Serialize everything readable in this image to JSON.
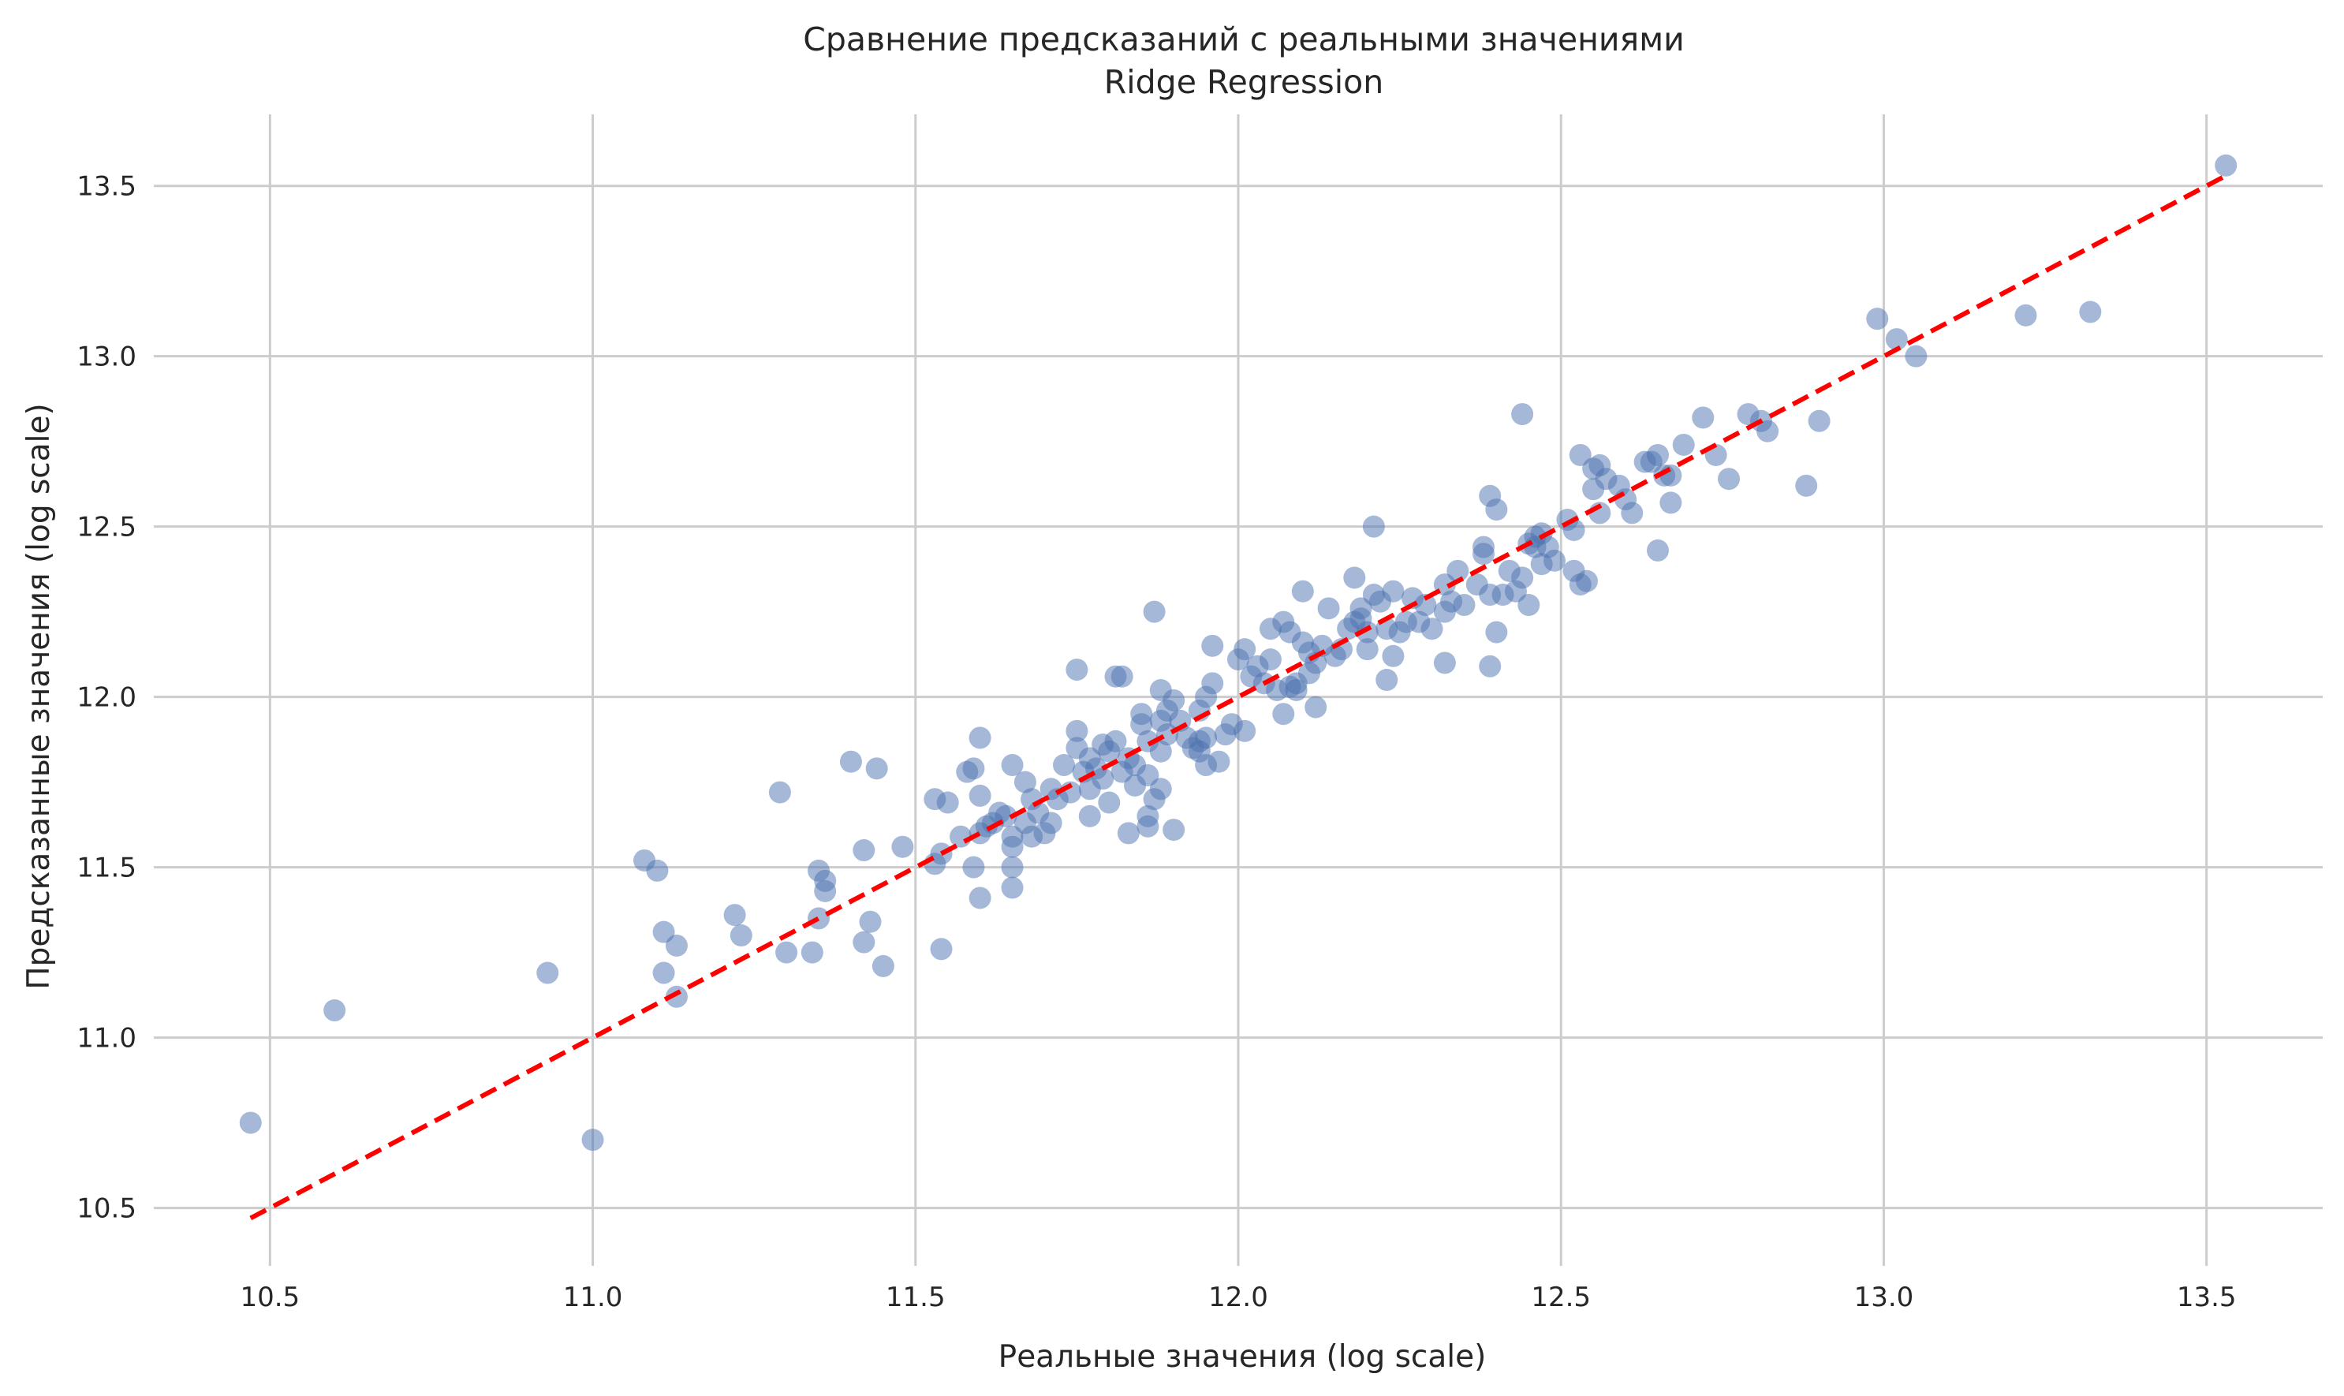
{
  "chart_data": {
    "type": "scatter",
    "title": "Сравнение предсказаний с реальными значениями",
    "subtitle": "Ridge Regression",
    "xlabel": "Реальные значения (log scale)",
    "ylabel": "Предсказанные значения (log scale)",
    "xlim": [
      10.32,
      13.68
    ],
    "ylim": [
      10.33,
      13.71
    ],
    "xticks": [
      "10.5",
      "11.0",
      "11.5",
      "12.0",
      "12.5",
      "13.0",
      "13.5"
    ],
    "yticks": [
      "10.5",
      "11.0",
      "11.5",
      "12.0",
      "12.5",
      "13.0",
      "13.5"
    ],
    "grid": true,
    "colors": {
      "points": "#4c72b0",
      "reference_line": "#ff0000",
      "grid": "#cccccc"
    },
    "reference_line": {
      "style": "dashed",
      "from": [
        10.47,
        10.47
      ],
      "to": [
        13.53,
        13.53
      ]
    },
    "points": [
      [
        10.47,
        10.75
      ],
      [
        10.6,
        11.08
      ],
      [
        10.93,
        11.19
      ],
      [
        11.0,
        10.7
      ],
      [
        11.08,
        11.52
      ],
      [
        11.1,
        11.49
      ],
      [
        11.11,
        11.31
      ],
      [
        11.11,
        11.19
      ],
      [
        11.13,
        11.27
      ],
      [
        11.13,
        11.12
      ],
      [
        11.22,
        11.36
      ],
      [
        11.23,
        11.3
      ],
      [
        11.29,
        11.72
      ],
      [
        11.3,
        11.25
      ],
      [
        11.34,
        11.25
      ],
      [
        11.35,
        11.49
      ],
      [
        11.35,
        11.35
      ],
      [
        11.36,
        11.46
      ],
      [
        11.36,
        11.43
      ],
      [
        11.4,
        11.81
      ],
      [
        11.42,
        11.55
      ],
      [
        11.42,
        11.28
      ],
      [
        11.43,
        11.34
      ],
      [
        11.44,
        11.79
      ],
      [
        11.45,
        11.21
      ],
      [
        11.48,
        11.56
      ],
      [
        11.53,
        11.7
      ],
      [
        11.53,
        11.51
      ],
      [
        11.54,
        11.54
      ],
      [
        11.54,
        11.26
      ],
      [
        11.55,
        11.69
      ],
      [
        11.57,
        11.59
      ],
      [
        11.58,
        11.78
      ],
      [
        11.59,
        11.79
      ],
      [
        11.59,
        11.5
      ],
      [
        11.6,
        11.41
      ],
      [
        11.6,
        11.71
      ],
      [
        11.6,
        11.88
      ],
      [
        11.6,
        11.6
      ],
      [
        11.61,
        11.62
      ],
      [
        11.62,
        11.63
      ],
      [
        11.63,
        11.66
      ],
      [
        11.64,
        11.65
      ],
      [
        11.65,
        11.8
      ],
      [
        11.65,
        11.59
      ],
      [
        11.65,
        11.56
      ],
      [
        11.65,
        11.5
      ],
      [
        11.65,
        11.44
      ],
      [
        11.67,
        11.63
      ],
      [
        11.67,
        11.75
      ],
      [
        11.68,
        11.59
      ],
      [
        11.68,
        11.7
      ],
      [
        11.69,
        11.66
      ],
      [
        11.7,
        11.6
      ],
      [
        11.71,
        11.73
      ],
      [
        11.71,
        11.63
      ],
      [
        11.72,
        11.7
      ],
      [
        11.73,
        11.8
      ],
      [
        11.74,
        11.72
      ],
      [
        11.75,
        11.9
      ],
      [
        11.75,
        12.08
      ],
      [
        11.75,
        11.85
      ],
      [
        11.76,
        11.78
      ],
      [
        11.77,
        11.82
      ],
      [
        11.77,
        11.65
      ],
      [
        11.77,
        11.73
      ],
      [
        11.78,
        11.79
      ],
      [
        11.79,
        11.86
      ],
      [
        11.79,
        11.76
      ],
      [
        11.8,
        11.69
      ],
      [
        11.8,
        11.84
      ],
      [
        11.81,
        11.87
      ],
      [
        11.81,
        12.06
      ],
      [
        11.82,
        12.06
      ],
      [
        11.82,
        11.78
      ],
      [
        11.83,
        11.6
      ],
      [
        11.83,
        11.82
      ],
      [
        11.84,
        11.8
      ],
      [
        11.84,
        11.74
      ],
      [
        11.85,
        11.95
      ],
      [
        11.85,
        11.92
      ],
      [
        11.86,
        11.87
      ],
      [
        11.86,
        11.77
      ],
      [
        11.86,
        11.65
      ],
      [
        11.86,
        11.62
      ],
      [
        11.87,
        11.7
      ],
      [
        11.87,
        12.25
      ],
      [
        11.88,
        11.93
      ],
      [
        11.88,
        12.02
      ],
      [
        11.88,
        11.84
      ],
      [
        11.88,
        11.73
      ],
      [
        11.89,
        11.89
      ],
      [
        11.89,
        11.96
      ],
      [
        11.9,
        11.99
      ],
      [
        11.9,
        11.61
      ],
      [
        11.91,
        11.93
      ],
      [
        11.92,
        11.88
      ],
      [
        11.93,
        11.85
      ],
      [
        11.94,
        11.87
      ],
      [
        11.94,
        11.96
      ],
      [
        11.94,
        11.84
      ],
      [
        11.95,
        11.88
      ],
      [
        11.95,
        11.8
      ],
      [
        11.95,
        12.0
      ],
      [
        11.96,
        12.15
      ],
      [
        11.96,
        12.04
      ],
      [
        11.97,
        11.81
      ],
      [
        11.98,
        11.89
      ],
      [
        11.99,
        11.92
      ],
      [
        12.0,
        12.11
      ],
      [
        12.01,
        11.9
      ],
      [
        12.01,
        12.14
      ],
      [
        12.02,
        12.06
      ],
      [
        12.03,
        12.09
      ],
      [
        12.04,
        12.04
      ],
      [
        12.05,
        12.2
      ],
      [
        12.05,
        12.11
      ],
      [
        12.06,
        12.02
      ],
      [
        12.07,
        11.95
      ],
      [
        12.07,
        12.22
      ],
      [
        12.08,
        12.03
      ],
      [
        12.08,
        12.19
      ],
      [
        12.09,
        12.04
      ],
      [
        12.09,
        12.02
      ],
      [
        12.1,
        12.31
      ],
      [
        12.1,
        12.16
      ],
      [
        12.11,
        12.07
      ],
      [
        12.11,
        12.13
      ],
      [
        12.12,
        12.1
      ],
      [
        12.12,
        11.97
      ],
      [
        12.13,
        12.15
      ],
      [
        12.14,
        12.26
      ],
      [
        12.15,
        12.12
      ],
      [
        12.16,
        12.14
      ],
      [
        12.17,
        12.2
      ],
      [
        12.18,
        12.35
      ],
      [
        12.18,
        12.22
      ],
      [
        12.19,
        12.26
      ],
      [
        12.19,
        12.23
      ],
      [
        12.2,
        12.14
      ],
      [
        12.2,
        12.19
      ],
      [
        12.21,
        12.5
      ],
      [
        12.21,
        12.3
      ],
      [
        12.22,
        12.28
      ],
      [
        12.23,
        12.05
      ],
      [
        12.23,
        12.2
      ],
      [
        12.24,
        12.31
      ],
      [
        12.24,
        12.12
      ],
      [
        12.25,
        12.19
      ],
      [
        12.26,
        12.22
      ],
      [
        12.27,
        12.29
      ],
      [
        12.28,
        12.22
      ],
      [
        12.29,
        12.27
      ],
      [
        12.3,
        12.2
      ],
      [
        12.32,
        12.1
      ],
      [
        12.32,
        12.25
      ],
      [
        12.32,
        12.33
      ],
      [
        12.33,
        12.28
      ],
      [
        12.34,
        12.37
      ],
      [
        12.35,
        12.27
      ],
      [
        12.37,
        12.33
      ],
      [
        12.38,
        12.42
      ],
      [
        12.38,
        12.44
      ],
      [
        12.39,
        12.3
      ],
      [
        12.39,
        12.09
      ],
      [
        12.39,
        12.59
      ],
      [
        12.4,
        12.19
      ],
      [
        12.4,
        12.55
      ],
      [
        12.41,
        12.3
      ],
      [
        12.42,
        12.37
      ],
      [
        12.43,
        12.31
      ],
      [
        12.44,
        12.35
      ],
      [
        12.44,
        12.83
      ],
      [
        12.45,
        12.45
      ],
      [
        12.45,
        12.27
      ],
      [
        12.46,
        12.44
      ],
      [
        12.46,
        12.47
      ],
      [
        12.47,
        12.39
      ],
      [
        12.47,
        12.48
      ],
      [
        12.48,
        12.44
      ],
      [
        12.49,
        12.4
      ],
      [
        12.51,
        12.52
      ],
      [
        12.52,
        12.49
      ],
      [
        12.52,
        12.37
      ],
      [
        12.53,
        12.71
      ],
      [
        12.53,
        12.33
      ],
      [
        12.54,
        12.34
      ],
      [
        12.55,
        12.61
      ],
      [
        12.55,
        12.67
      ],
      [
        12.56,
        12.54
      ],
      [
        12.56,
        12.68
      ],
      [
        12.57,
        12.64
      ],
      [
        12.59,
        12.62
      ],
      [
        12.6,
        12.58
      ],
      [
        12.61,
        12.54
      ],
      [
        12.63,
        12.69
      ],
      [
        12.64,
        12.69
      ],
      [
        12.65,
        12.71
      ],
      [
        12.65,
        12.43
      ],
      [
        12.66,
        12.65
      ],
      [
        12.67,
        12.65
      ],
      [
        12.67,
        12.57
      ],
      [
        12.69,
        12.74
      ],
      [
        12.72,
        12.82
      ],
      [
        12.74,
        12.71
      ],
      [
        12.76,
        12.64
      ],
      [
        12.79,
        12.83
      ],
      [
        12.81,
        12.81
      ],
      [
        12.82,
        12.78
      ],
      [
        12.88,
        12.62
      ],
      [
        12.9,
        12.81
      ],
      [
        12.99,
        13.11
      ],
      [
        13.02,
        13.05
      ],
      [
        13.05,
        13.0
      ],
      [
        13.22,
        13.12
      ],
      [
        13.32,
        13.13
      ],
      [
        13.53,
        13.56
      ]
    ]
  }
}
